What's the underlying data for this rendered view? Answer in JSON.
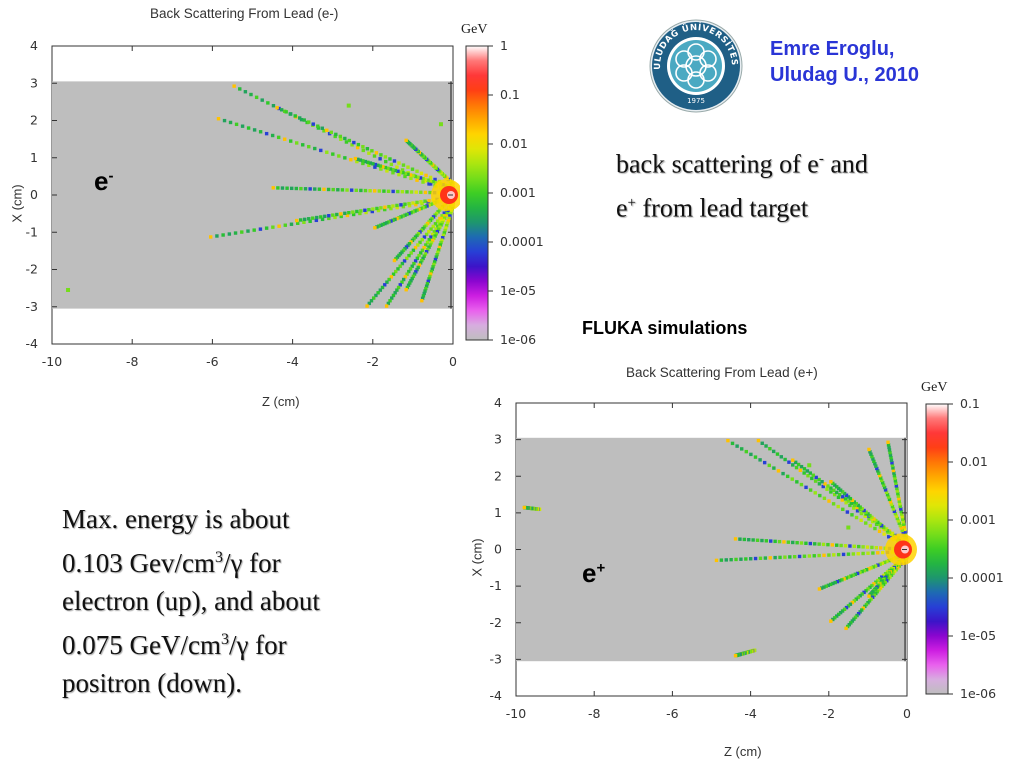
{
  "logo": {
    "top_text": "ULUDAĞ ÜNİVERSİTESİ",
    "year": "1975",
    "ring_color": "#1f5f86",
    "inner_color": "#4aa9c2"
  },
  "author": {
    "line1": "Emre Eroglu,",
    "line2": "Uludag U., 2010"
  },
  "header_note": {
    "line1_a": "back scattering of e",
    "line1_sup": "-",
    "line1_b": " and",
    "line2_a": "e",
    "line2_sup": "+",
    "line2_b": " from lead target"
  },
  "fluka_label": "FLUKA simulations",
  "summary": {
    "line1": "Max. energy is about",
    "line2_a": "0.103 Gev/cm",
    "line2_sup": "3",
    "line2_b": "/γ for",
    "line3": "electron (up), and about",
    "line4_a": "0.075 GeV/cm",
    "line4_sup": "3",
    "line4_b": "/γ for",
    "line5": "positron (down)."
  },
  "chart_data": [
    {
      "type": "heatmap",
      "title": "Back Scattering From Lead (e-)",
      "particle_label": "e",
      "particle_sup": "-",
      "xlabel": "Z (cm)",
      "ylabel": "X (cm)",
      "xlim": [
        -10,
        0
      ],
      "ylim": [
        -4,
        4
      ],
      "xticks": [
        "-10",
        "-8",
        "-6",
        "-4",
        "-2",
        "0"
      ],
      "yticks": [
        "4",
        "3",
        "2",
        "1",
        "0",
        "-1",
        "-2",
        "-3",
        "-4"
      ],
      "target_region": {
        "z": [
          -10,
          0
        ],
        "x": [
          -3.05,
          3.05
        ],
        "color": "#bebebe"
      },
      "colorbar": {
        "unit": "GeV",
        "scale": "log",
        "labels": [
          "1",
          "0.1",
          "0.01",
          "0.001",
          "0.0001",
          "1e-05",
          "1e-06"
        ]
      },
      "max_value": 0.103,
      "tracks": [
        {
          "z0": 0,
          "x0": 0,
          "z1": -5.6,
          "x1": 3.0
        },
        {
          "z0": 0,
          "x0": 0.1,
          "z1": -6.0,
          "x1": 2.1
        },
        {
          "z0": 0,
          "x0": 0.2,
          "z1": -4.5,
          "x1": 2.4
        },
        {
          "z0": 0,
          "x0": 0.05,
          "z1": -4.6,
          "x1": 0.2
        },
        {
          "z0": 0,
          "x0": -0.1,
          "z1": -6.2,
          "x1": -1.15
        },
        {
          "z0": 0,
          "x0": -0.05,
          "z1": -4.0,
          "x1": -0.7
        },
        {
          "z0": 0,
          "x0": -0.2,
          "z1": -2.2,
          "x1": -3.05
        },
        {
          "z0": 0,
          "x0": -0.2,
          "z1": -1.7,
          "x1": -3.05
        },
        {
          "z0": 0,
          "x0": -0.2,
          "z1": -1.2,
          "x1": -2.6
        },
        {
          "z0": 0,
          "x0": -0.3,
          "z1": -0.8,
          "x1": -2.9
        },
        {
          "z0": 0,
          "x0": 0.3,
          "z1": -1.2,
          "x1": 1.5
        },
        {
          "z0": 0,
          "x0": 0.2,
          "z1": -2.5,
          "x1": 1.0
        },
        {
          "z0": 0,
          "x0": 0,
          "z1": -2.0,
          "x1": -0.9
        },
        {
          "z0": 0,
          "x0": 0,
          "z1": -1.5,
          "x1": -1.8
        }
      ],
      "spots": [
        {
          "z": -2.6,
          "x": 2.4
        },
        {
          "z": -9.6,
          "x": -2.55
        },
        {
          "z": -0.3,
          "x": 1.9
        }
      ]
    },
    {
      "type": "heatmap",
      "title": "Back Scattering From Lead (e+)",
      "particle_label": "e",
      "particle_sup": "+",
      "xlabel": "Z (cm)",
      "ylabel": "X (cm)",
      "xlim": [
        -10,
        0
      ],
      "ylim": [
        -4,
        4
      ],
      "xticks": [
        "-10",
        "-8",
        "-6",
        "-4",
        "-2",
        "0"
      ],
      "yticks": [
        "4",
        "3",
        "2",
        "1",
        "0",
        "-1",
        "-2",
        "-3",
        "-4"
      ],
      "target_region": {
        "z": [
          -10,
          0
        ],
        "x": [
          -3.05,
          3.05
        ],
        "color": "#bebebe"
      },
      "colorbar": {
        "unit": "GeV",
        "scale": "log",
        "labels": [
          "0.1",
          "0.01",
          "0.001",
          "0.0001",
          "1e-05",
          "1e-06"
        ]
      },
      "max_value": 0.075,
      "tracks": [
        {
          "z0": 0,
          "x0": 0.05,
          "z1": -4.7,
          "x1": 3.05
        },
        {
          "z0": 0,
          "x0": 0.1,
          "z1": -3.9,
          "x1": 3.05
        },
        {
          "z0": 0,
          "x0": 0.15,
          "z1": -3.0,
          "x1": 2.5
        },
        {
          "z0": 0,
          "x0": 0.05,
          "z1": -2.0,
          "x1": 1.9
        },
        {
          "z0": 0,
          "x0": 0,
          "z1": -4.5,
          "x1": 0.3
        },
        {
          "z0": 0,
          "x0": -0.05,
          "z1": -5.0,
          "x1": -0.3
        },
        {
          "z0": 0,
          "x0": -0.1,
          "z1": -2.3,
          "x1": -1.1
        },
        {
          "z0": 0,
          "x0": -0.15,
          "z1": -2.0,
          "x1": -2.0
        },
        {
          "z0": 0,
          "x0": -0.2,
          "z1": -1.6,
          "x1": -2.2
        },
        {
          "z0": 0,
          "x0": -0.1,
          "z1": -1.0,
          "x1": -1.3
        },
        {
          "z0": 0,
          "x0": 0.2,
          "z1": -0.5,
          "x1": 3.0
        },
        {
          "z0": 0,
          "x0": 0.2,
          "z1": -1.0,
          "x1": 2.8
        },
        {
          "z0": -9.4,
          "x0": 1.1,
          "z1": -9.8,
          "x1": 1.15
        },
        {
          "z0": -3.9,
          "x0": -2.75,
          "z1": -4.4,
          "x1": -2.9
        }
      ],
      "spots": [
        {
          "z": -2.5,
          "x": 2.3
        },
        {
          "z": -1.5,
          "x": 0.6
        }
      ]
    }
  ]
}
